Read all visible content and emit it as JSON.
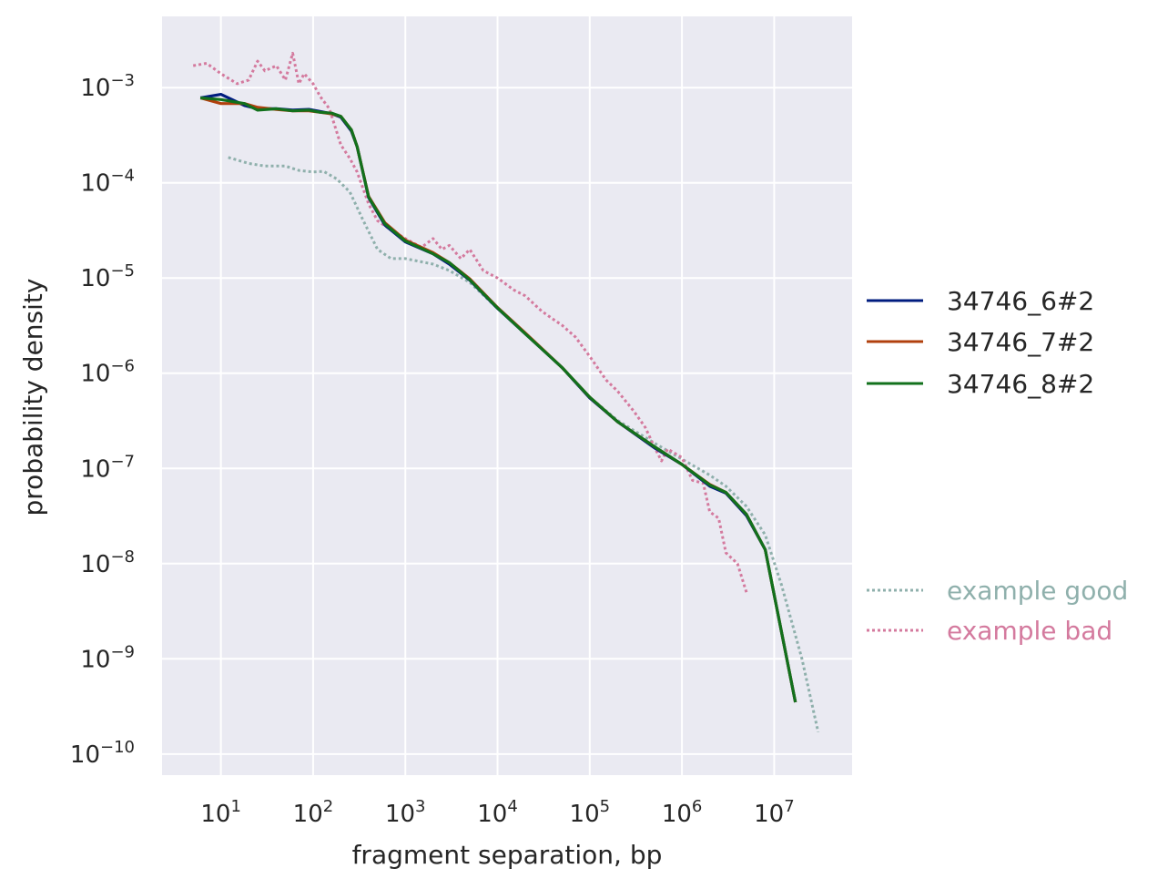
{
  "chart_data": {
    "type": "line",
    "title": "",
    "xlabel": "fragment separation, bp",
    "ylabel": "probability density",
    "x_scale": "log",
    "y_scale": "log",
    "xlim": [
      2.3,
      70000000
    ],
    "ylim": [
      6e-11,
      0.0056
    ],
    "grid": true,
    "legend_position": "right",
    "x_ticks": [
      {
        "exp": "1",
        "value": 10
      },
      {
        "exp": "2",
        "value": 100
      },
      {
        "exp": "3",
        "value": 1000
      },
      {
        "exp": "4",
        "value": 10000
      },
      {
        "exp": "5",
        "value": 100000
      },
      {
        "exp": "6",
        "value": 1000000
      },
      {
        "exp": "7",
        "value": 10000000
      }
    ],
    "y_ticks": [
      {
        "exp": "−3",
        "value": 0.001
      },
      {
        "exp": "−4",
        "value": 0.0001
      },
      {
        "exp": "−5",
        "value": 1e-05
      },
      {
        "exp": "−6",
        "value": 1e-06
      },
      {
        "exp": "−7",
        "value": 1e-07
      },
      {
        "exp": "−8",
        "value": 1e-08
      },
      {
        "exp": "−9",
        "value": 1e-09
      },
      {
        "exp": "−10",
        "value": 1e-10
      }
    ],
    "series": [
      {
        "name": "34746_6#2",
        "color": "#001c7f",
        "dash": "solid",
        "x": [
          6,
          10,
          18,
          25,
          40,
          60,
          90,
          120,
          160,
          200,
          260,
          300,
          400,
          600,
          1000,
          2000,
          3000,
          5000,
          10000,
          20000,
          50000,
          100000,
          200000,
          500000,
          1000000,
          2000000,
          3000000,
          5000000,
          8000000,
          17000000
        ],
        "y": [
          0.00078,
          0.00085,
          0.00065,
          0.0006,
          0.0006,
          0.00058,
          0.00059,
          0.00056,
          0.00053,
          0.00049,
          0.00035,
          0.00024,
          7e-05,
          3.6e-05,
          2.4e-05,
          1.8e-05,
          1.4e-05,
          9.5e-06,
          4.8e-06,
          2.6e-06,
          1.15e-06,
          5.5e-07,
          3.1e-07,
          1.65e-07,
          1.1e-07,
          6.5e-08,
          5.5e-08,
          3.2e-08,
          1.4e-08,
          3.5e-10
        ]
      },
      {
        "name": "34746_7#2",
        "color": "#b1400d",
        "dash": "solid",
        "x": [
          6,
          10,
          18,
          25,
          40,
          60,
          90,
          120,
          160,
          200,
          260,
          300,
          400,
          600,
          1000,
          2000,
          3000,
          5000,
          10000,
          20000,
          50000,
          100000,
          200000,
          500000,
          1000000,
          2000000,
          3000000,
          5000000,
          8000000,
          17000000
        ],
        "y": [
          0.00078,
          0.00068,
          0.00068,
          0.00062,
          0.00059,
          0.00057,
          0.00057,
          0.00055,
          0.00053,
          0.0005,
          0.00036,
          0.00024,
          7.2e-05,
          3.8e-05,
          2.5e-05,
          1.85e-05,
          1.45e-05,
          9.8e-06,
          4.9e-06,
          2.65e-06,
          1.15e-06,
          5.6e-07,
          3.1e-07,
          1.7e-07,
          1.1e-07,
          6.8e-08,
          5.6e-08,
          3.3e-08,
          1.4e-08,
          3.5e-10
        ]
      },
      {
        "name": "34746_8#2",
        "color": "#12711c",
        "dash": "solid",
        "x": [
          6,
          10,
          18,
          25,
          40,
          60,
          90,
          120,
          160,
          200,
          260,
          300,
          400,
          600,
          1000,
          2000,
          3000,
          5000,
          10000,
          20000,
          50000,
          100000,
          200000,
          500000,
          1000000,
          2000000,
          3000000,
          5000000,
          8000000,
          17000000
        ],
        "y": [
          0.00078,
          0.00075,
          0.00068,
          0.00058,
          0.0006,
          0.00057,
          0.00058,
          0.00055,
          0.00054,
          0.0005,
          0.00036,
          0.00024,
          7.1e-05,
          3.7e-05,
          2.45e-05,
          1.8e-05,
          1.45e-05,
          9.6e-06,
          4.85e-06,
          2.6e-06,
          1.15e-06,
          5.6e-07,
          3.1e-07,
          1.7e-07,
          1.1e-07,
          6.7e-08,
          5.6e-08,
          3.3e-08,
          1.4e-08,
          3.5e-10
        ]
      },
      {
        "name": "example good",
        "color": "#8fb0ac",
        "dash": "dotted",
        "x": [
          12,
          20,
          30,
          50,
          70,
          100,
          130,
          180,
          250,
          350,
          500,
          700,
          1000,
          2000,
          3000,
          5000,
          10000,
          20000,
          50000,
          100000,
          200000,
          500000,
          1000000,
          2000000,
          3000000,
          5000000,
          8000000,
          12000000,
          20000000,
          30000000
        ],
        "y": [
          0.000185,
          0.00016,
          0.00015,
          0.00015,
          0.000135,
          0.00013,
          0.000132,
          0.00011,
          8e-05,
          4e-05,
          2e-05,
          1.6e-05,
          1.6e-05,
          1.4e-05,
          1.2e-05,
          9e-06,
          4.8e-06,
          2.6e-06,
          1.15e-06,
          5.6e-07,
          3.2e-07,
          1.85e-07,
          1.25e-07,
          8.5e-08,
          6.5e-08,
          4e-08,
          2e-08,
          6e-09,
          1e-09,
          1.7e-10
        ]
      },
      {
        "name": "example bad",
        "color": "#d47a9e",
        "dash": "dotted",
        "x": [
          5,
          7,
          10,
          15,
          20,
          25,
          30,
          40,
          50,
          60,
          70,
          80,
          100,
          120,
          150,
          200,
          250,
          300,
          400,
          500,
          700,
          1000,
          1500,
          2000,
          2500,
          3000,
          4000,
          5000,
          7000,
          10000,
          15000,
          20000,
          30000,
          40000,
          50000,
          70000,
          100000,
          150000,
          200000,
          300000,
          400000,
          500000,
          600000,
          700000,
          1000000,
          1300000,
          1700000,
          2000000,
          2500000,
          3000000,
          4000000,
          5000000
        ],
        "y": [
          0.0017,
          0.0018,
          0.0014,
          0.0011,
          0.0012,
          0.0019,
          0.0015,
          0.0017,
          0.0012,
          0.0023,
          0.0011,
          0.0014,
          0.0011,
          0.0008,
          0.0006,
          0.00025,
          0.00018,
          0.00013,
          6e-05,
          4e-05,
          3.2e-05,
          2.6e-05,
          2.1e-05,
          2.6e-05,
          2e-05,
          2.2e-05,
          1.6e-05,
          2e-05,
          1.2e-05,
          1e-05,
          7.5e-06,
          6.5e-06,
          4.5e-06,
          3.7e-06,
          3.2e-06,
          2.4e-06,
          1.5e-06,
          8.5e-07,
          6.5e-07,
          4e-07,
          2.7e-07,
          1.7e-07,
          1.2e-07,
          1.6e-07,
          1.3e-07,
          7.5e-08,
          7e-08,
          3.5e-08,
          3e-08,
          1.3e-08,
          1e-08,
          5e-09
        ]
      }
    ]
  }
}
